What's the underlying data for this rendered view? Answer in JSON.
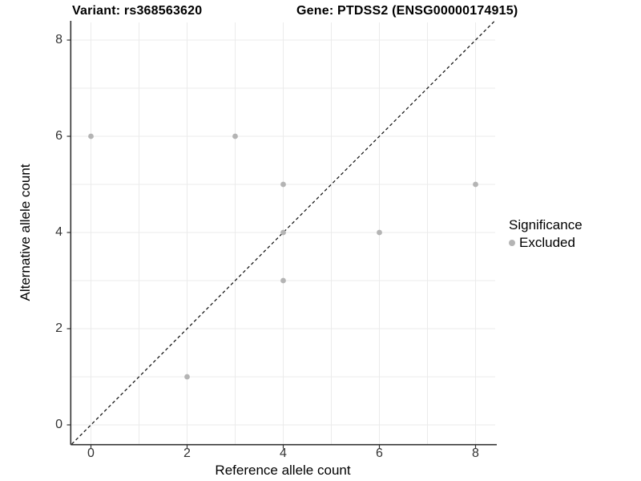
{
  "chart_data": {
    "type": "scatter",
    "title_left": "Variant: rs368563620",
    "title_right": "Gene: PTDSS2 (ENSG00000174915)",
    "xlabel": "Reference allele count",
    "ylabel": "Alternative allele count",
    "xlim": [
      -0.4,
      8.4
    ],
    "ylim": [
      -0.4,
      8.4
    ],
    "xticks": [
      0,
      2,
      4,
      6,
      8
    ],
    "yticks": [
      0,
      2,
      4,
      6,
      8
    ],
    "grid_lines": [
      0,
      1,
      2,
      3,
      4,
      5,
      6,
      7,
      8
    ],
    "grid": "on",
    "series": [
      {
        "name": "Excluded",
        "points": [
          [
            0,
            6
          ],
          [
            2,
            1
          ],
          [
            3,
            6
          ],
          [
            4,
            3
          ],
          [
            4,
            4
          ],
          [
            4,
            5
          ],
          [
            6,
            4
          ],
          [
            8,
            5
          ]
        ]
      }
    ],
    "identity_line": {
      "style": "dashed",
      "from": -0.4,
      "to": 8.4
    },
    "legend": {
      "title": "Significance",
      "position": "right",
      "entries": [
        {
          "label": "Excluded"
        }
      ]
    }
  },
  "colors": {
    "point": "#b4b4b4",
    "grid": "#ebebeb",
    "axis": "#333333",
    "tick": "#333333",
    "dashed_line": "#1a1a1a",
    "background": "#ffffff"
  }
}
